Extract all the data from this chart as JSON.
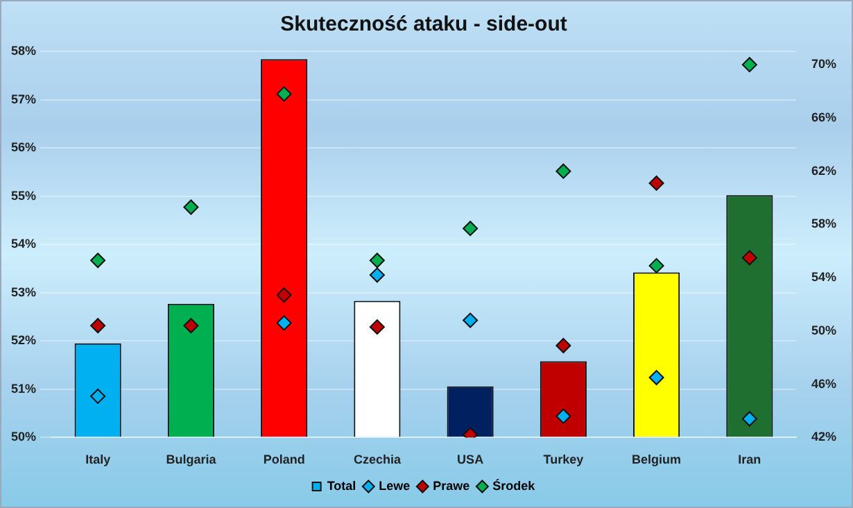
{
  "chart_data": {
    "type": "bar",
    "title": "Skuteczność ataku - side-out",
    "categories": [
      "Italy",
      "Bulgaria",
      "Poland",
      "Czechia",
      "USA",
      "Turkey",
      "Belgium",
      "Iran"
    ],
    "series": [
      {
        "name": "Total",
        "colors": [
          "#00b0f0",
          "#00b050",
          "#ff0000",
          "#ffffff",
          "#002060",
          "#c00000",
          "#ffff00",
          "#1f7030"
        ],
        "values": [
          51.95,
          52.77,
          57.84,
          52.83,
          51.06,
          51.58,
          53.42,
          55.02
        ]
      },
      {
        "name": "Lewe",
        "type": "scatter",
        "axis": "y2",
        "color": "#00b0f0",
        "values": [
          45.1,
          null,
          50.6,
          54.2,
          50.8,
          43.6,
          46.5,
          43.4
        ]
      },
      {
        "name": "Prawe",
        "type": "scatter",
        "axis": "y2",
        "color": "#c00000",
        "values": [
          50.4,
          50.4,
          52.7,
          50.3,
          42.2,
          48.9,
          61.1,
          55.5
        ]
      },
      {
        "name": "Środek",
        "type": "scatter",
        "axis": "y2",
        "color": "#00b050",
        "values": [
          55.3,
          59.3,
          67.8,
          55.3,
          57.7,
          62.0,
          54.9,
          70.0
        ]
      }
    ],
    "ylim": [
      50,
      58
    ],
    "yticks": [
      {
        "value": 50,
        "label": "50%"
      },
      {
        "value": 51,
        "label": "51%"
      },
      {
        "value": 52,
        "label": "52%"
      },
      {
        "value": 53,
        "label": "53%"
      },
      {
        "value": 54,
        "label": "54%"
      },
      {
        "value": 55,
        "label": "55%"
      },
      {
        "value": 56,
        "label": "56%"
      },
      {
        "value": 57,
        "label": "57%"
      },
      {
        "value": 58,
        "label": "58%"
      }
    ],
    "y2lim": [
      42,
      71
    ],
    "y2ticks": [
      {
        "value": 42,
        "label": "42%"
      },
      {
        "value": 46,
        "label": "46%"
      },
      {
        "value": 50,
        "label": "50%"
      },
      {
        "value": 54,
        "label": "54%"
      },
      {
        "value": 58,
        "label": "58%"
      },
      {
        "value": 62,
        "label": "62%"
      },
      {
        "value": 66,
        "label": "66%"
      },
      {
        "value": 70,
        "label": "70%"
      }
    ],
    "grid": "y",
    "legend": "bottom",
    "marker": "diamond"
  }
}
